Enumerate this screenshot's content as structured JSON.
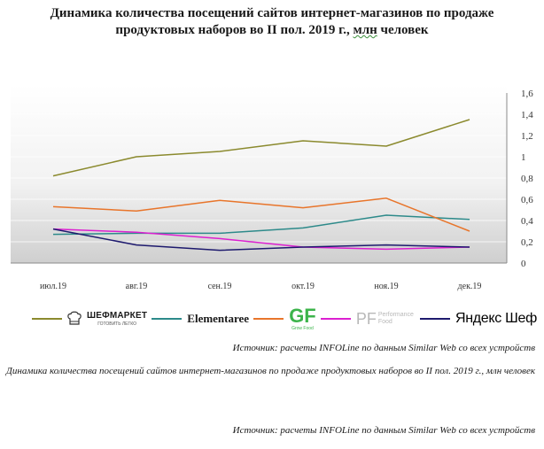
{
  "title": {
    "line1": "Динамика количества посещений сайтов интернет-магазинов по продаже",
    "line2_before": "продуктовых наборов во II пол. 2019 г., ",
    "line2_ul": "млн",
    "line2_after": " человек"
  },
  "chart_data": {
    "type": "line",
    "title": "Динамика количества посещений сайтов интернет-магазинов по продаже продуктовых наборов во II пол. 2019 г., млн человек",
    "categories": [
      "июл.19",
      "авг.19",
      "сен.19",
      "окт.19",
      "ноя.19",
      "дек.19"
    ],
    "ylim": [
      0,
      1.6
    ],
    "yticks": [
      "0",
      "0,2",
      "0,4",
      "0,6",
      "0,8",
      "1",
      "1,2",
      "1,4",
      "1,6"
    ],
    "y_axis_side": "right",
    "background": "gradient-gray",
    "legend_position": "bottom",
    "series": [
      {
        "name": "ШЕФМАРКЕТ",
        "color": "#8b8a2e",
        "values": [
          0.82,
          1.0,
          1.05,
          1.15,
          1.1,
          1.35
        ]
      },
      {
        "name": "Elementaree",
        "color": "#2d8a8a",
        "values": [
          0.27,
          0.28,
          0.28,
          0.33,
          0.45,
          0.41
        ]
      },
      {
        "name": "GF",
        "color": "#e8752b",
        "values": [
          0.53,
          0.49,
          0.59,
          0.52,
          0.61,
          0.3
        ]
      },
      {
        "name": "Performance Food",
        "color": "#dc1fd0",
        "values": [
          0.32,
          0.29,
          0.23,
          0.15,
          0.13,
          0.15
        ]
      },
      {
        "name": "Яндекс Шеф",
        "color": "#1e1a6e",
        "values": [
          0.32,
          0.17,
          0.12,
          0.15,
          0.17,
          0.15
        ]
      }
    ]
  },
  "legend": {
    "shef": {
      "line1": "ШЕФМАРКЕТ",
      "line2": "ГОТОВИТЬ ЛЕГКО"
    },
    "elementaree": "Elementaree",
    "gf": {
      "line1": "GF",
      "line2": "Grow Food"
    },
    "pf": {
      "mark": "PF",
      "line1": "Performance",
      "line2": "Food"
    },
    "yandex": "Яндекс Шеф"
  },
  "notes": {
    "source1": "Источник: расчеты INFOLine по данным Similar Web со всех устройств",
    "caption": "Динамика количества посещений сайтов интернет-магазинов по продаже продуктовых наборов во II пол. 2019 г., млн человек",
    "source2": "Источник: расчеты INFOLine по данным Similar Web со всех устройств"
  }
}
